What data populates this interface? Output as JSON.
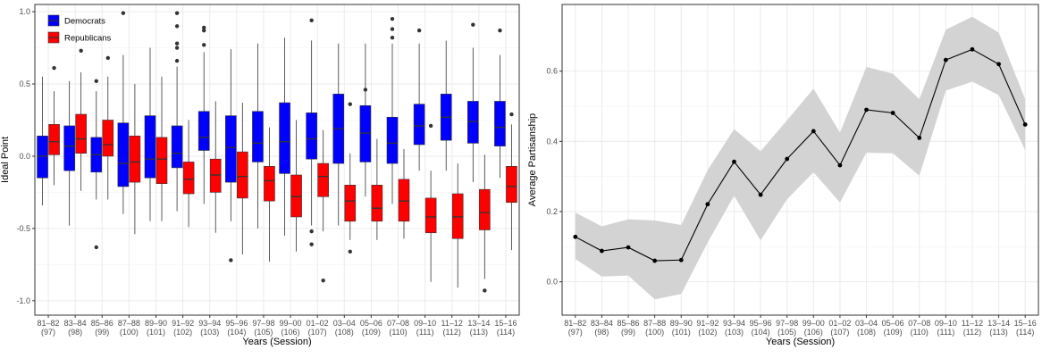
{
  "chart_data": [
    {
      "type": "box",
      "xlabel": "Years (Session)",
      "ylabel": "Ideal Point",
      "ylim": [
        -1.1,
        1.05
      ],
      "yticks": [
        -1.0,
        -0.5,
        0.0,
        0.5,
        1.0
      ],
      "yticklabels": [
        "-1.0",
        "-0.5",
        "0.0",
        "0.5",
        "1.0"
      ],
      "categories": [
        "81–82",
        "83–84",
        "85–86",
        "87–88",
        "89–90",
        "91–92",
        "93–94",
        "95–96",
        "97–98",
        "99–00",
        "01–02",
        "03–04",
        "05–06",
        "07–08",
        "09–10",
        "11–12",
        "13–14",
        "15–16"
      ],
      "sessions": [
        "(97)",
        "(98)",
        "(99)",
        "(100)",
        "(101)",
        "(102)",
        "(103)",
        "(104)",
        "(105)",
        "(106)",
        "(107)",
        "(108)",
        "(109)",
        "(110)",
        "(111)",
        "(112)",
        "(113)",
        "(114)"
      ],
      "grid": true,
      "legend": {
        "position": "top-left",
        "entries": [
          "Democrats",
          "Republicans"
        ]
      },
      "series": [
        {
          "name": "Democrats",
          "color": "#0000ff",
          "boxes": [
            {
              "min": -0.34,
              "q1": -0.15,
              "median": 0.0,
              "q3": 0.14,
              "max": 0.55,
              "outliers": []
            },
            {
              "min": -0.48,
              "q1": -0.1,
              "median": 0.07,
              "q3": 0.21,
              "max": 0.52,
              "outliers": []
            },
            {
              "min": -0.3,
              "q1": -0.11,
              "median": 0.01,
              "q3": 0.13,
              "max": 0.45,
              "outliers": [
                0.52,
                -0.63
              ]
            },
            {
              "min": -0.4,
              "q1": -0.21,
              "median": -0.05,
              "q3": 0.23,
              "max": 0.7,
              "outliers": [
                0.99
              ]
            },
            {
              "min": -0.45,
              "q1": -0.15,
              "median": -0.02,
              "q3": 0.28,
              "max": 0.75,
              "outliers": []
            },
            {
              "min": -0.38,
              "q1": -0.08,
              "median": 0.02,
              "q3": 0.21,
              "max": 0.62,
              "outliers": [
                0.66,
                0.75,
                0.78,
                0.9,
                0.99
              ]
            },
            {
              "min": -0.33,
              "q1": 0.04,
              "median": 0.13,
              "q3": 0.31,
              "max": 0.72,
              "outliers": [
                0.77,
                0.87,
                0.89
              ]
            },
            {
              "min": -0.45,
              "q1": -0.18,
              "median": 0.06,
              "q3": 0.28,
              "max": 0.74,
              "outliers": [
                -0.72
              ]
            },
            {
              "min": -0.5,
              "q1": -0.04,
              "median": 0.09,
              "q3": 0.31,
              "max": 0.78,
              "outliers": []
            },
            {
              "min": -0.55,
              "q1": -0.12,
              "median": 0.1,
              "q3": 0.37,
              "max": 0.82,
              "outliers": []
            },
            {
              "min": -0.48,
              "q1": -0.02,
              "median": 0.12,
              "q3": 0.3,
              "max": 0.8,
              "outliers": [
                0.94,
                -0.52,
                -0.61
              ]
            },
            {
              "min": -0.48,
              "q1": -0.05,
              "median": 0.19,
              "q3": 0.43,
              "max": 0.78,
              "outliers": []
            },
            {
              "min": -0.28,
              "q1": -0.04,
              "median": 0.16,
              "q3": 0.35,
              "max": 0.78,
              "outliers": [
                0.46
              ]
            },
            {
              "min": -0.33,
              "q1": -0.05,
              "median": 0.09,
              "q3": 0.27,
              "max": 0.78,
              "outliers": [
                0.82,
                0.88,
                0.95
              ]
            },
            {
              "min": -0.1,
              "q1": 0.08,
              "median": 0.21,
              "q3": 0.36,
              "max": 0.78,
              "outliers": [
                0.87
              ]
            },
            {
              "min": -0.1,
              "q1": 0.11,
              "median": 0.27,
              "q3": 0.43,
              "max": 0.8,
              "outliers": []
            },
            {
              "min": -0.18,
              "q1": 0.09,
              "median": 0.24,
              "q3": 0.38,
              "max": 0.75,
              "outliers": [
                0.91
              ]
            },
            {
              "min": -0.15,
              "q1": 0.07,
              "median": 0.2,
              "q3": 0.38,
              "max": 0.7,
              "outliers": [
                0.87
              ]
            }
          ]
        },
        {
          "name": "Republicans",
          "color": "#ff0000",
          "boxes": [
            {
              "min": -0.2,
              "q1": 0.01,
              "median": 0.1,
              "q3": 0.22,
              "max": 0.45,
              "outliers": [
                0.61
              ]
            },
            {
              "min": -0.24,
              "q1": 0.02,
              "median": 0.12,
              "q3": 0.29,
              "max": 0.58,
              "outliers": [
                0.73
              ]
            },
            {
              "min": -0.3,
              "q1": 0.0,
              "median": 0.08,
              "q3": 0.25,
              "max": 0.55,
              "outliers": [
                0.68
              ]
            },
            {
              "min": -0.54,
              "q1": -0.18,
              "median": -0.04,
              "q3": 0.14,
              "max": 0.5,
              "outliers": []
            },
            {
              "min": -0.45,
              "q1": -0.19,
              "median": -0.02,
              "q3": 0.13,
              "max": 0.55,
              "outliers": []
            },
            {
              "min": -0.49,
              "q1": -0.26,
              "median": -0.16,
              "q3": -0.04,
              "max": 0.25,
              "outliers": []
            },
            {
              "min": -0.53,
              "q1": -0.25,
              "median": -0.13,
              "q3": -0.02,
              "max": 0.38,
              "outliers": []
            },
            {
              "min": -0.68,
              "q1": -0.29,
              "median": -0.14,
              "q3": 0.03,
              "max": 0.37,
              "outliers": []
            },
            {
              "min": -0.73,
              "q1": -0.31,
              "median": -0.17,
              "q3": -0.07,
              "max": 0.2,
              "outliers": []
            },
            {
              "min": -0.66,
              "q1": -0.42,
              "median": -0.28,
              "q3": -0.13,
              "max": 0.25,
              "outliers": []
            },
            {
              "min": -0.52,
              "q1": -0.28,
              "median": -0.14,
              "q3": -0.05,
              "max": 0.18,
              "outliers": [
                -0.86
              ]
            },
            {
              "min": -0.58,
              "q1": -0.45,
              "median": -0.31,
              "q3": -0.2,
              "max": 0.02,
              "outliers": [
                0.36,
                -0.66
              ]
            },
            {
              "min": -0.58,
              "q1": -0.45,
              "median": -0.36,
              "q3": -0.2,
              "max": 0.12,
              "outliers": []
            },
            {
              "min": -0.57,
              "q1": -0.45,
              "median": -0.31,
              "q3": -0.16,
              "max": 0.05,
              "outliers": []
            },
            {
              "min": -0.87,
              "q1": -0.53,
              "median": -0.42,
              "q3": -0.29,
              "max": -0.1,
              "outliers": [
                0.21
              ]
            },
            {
              "min": -0.91,
              "q1": -0.57,
              "median": -0.42,
              "q3": -0.26,
              "max": -0.05,
              "outliers": []
            },
            {
              "min": -0.85,
              "q1": -0.51,
              "median": -0.39,
              "q3": -0.23,
              "max": 0.01,
              "outliers": [
                -0.93
              ]
            },
            {
              "min": -0.65,
              "q1": -0.32,
              "median": -0.21,
              "q3": -0.07,
              "max": 0.22,
              "outliers": [
                0.29
              ]
            }
          ]
        }
      ]
    },
    {
      "type": "line",
      "xlabel": "Years (Session)",
      "ylabel": "Average Partisanship",
      "ylim": [
        -0.095,
        0.79
      ],
      "yticks": [
        0.0,
        0.2,
        0.4,
        0.6
      ],
      "yticklabels": [
        "0.0",
        "0.2",
        "0.4",
        "0.6"
      ],
      "categories": [
        "81–82",
        "83–84",
        "85–86",
        "87–88",
        "89–90",
        "91–92",
        "93–94",
        "95–96",
        "97–98",
        "99–00",
        "01–02",
        "03–04",
        "05–06",
        "07–08",
        "09–10",
        "11–12",
        "13–14",
        "15–16"
      ],
      "sessions": [
        "(97)",
        "(98)",
        "(99)",
        "(100)",
        "(101)",
        "(102)",
        "(103)",
        "(104)",
        "(105)",
        "(106)",
        "(107)",
        "(108)",
        "(109)",
        "(110)",
        "(111)",
        "(112)",
        "(113)",
        "(114)"
      ],
      "grid": true,
      "series": [
        {
          "values": [
            0.128,
            0.088,
            0.098,
            0.06,
            0.062,
            0.221,
            0.342,
            0.248,
            0.35,
            0.429,
            0.332,
            0.49,
            0.481,
            0.41,
            0.632,
            0.662,
            0.62,
            0.448
          ],
          "lower": [
            0.065,
            0.015,
            0.018,
            -0.05,
            -0.035,
            0.112,
            0.245,
            0.118,
            0.235,
            0.312,
            0.226,
            0.368,
            0.366,
            0.302,
            0.545,
            0.57,
            0.532,
            0.375
          ],
          "upper": [
            0.197,
            0.158,
            0.178,
            0.175,
            0.162,
            0.318,
            0.435,
            0.372,
            0.46,
            0.55,
            0.425,
            0.612,
            0.593,
            0.52,
            0.718,
            0.755,
            0.71,
            0.52
          ],
          "color": "#000000",
          "band_color": "#d3d3d3"
        }
      ]
    }
  ]
}
